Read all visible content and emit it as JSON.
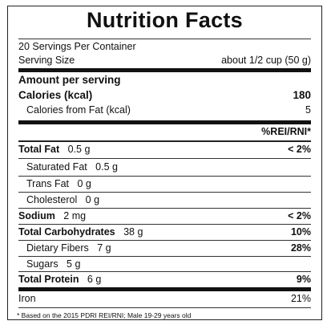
{
  "label": {
    "title": "Nutrition  Facts",
    "servings": "20 Servings Per Container",
    "serving_size_label": "Serving Size",
    "serving_size_value": "about 1/2 cup (50 g)",
    "amount_per_serving": "Amount per serving",
    "calories_label": "Calories (kcal)",
    "calories_value": "180",
    "calories_fat_label": "Calories from Fat (kcal)",
    "calories_fat_value": "5",
    "dv_header": "%REI/RNI*",
    "rows": [
      {
        "label": "Total Fat",
        "amount": "0.5 g",
        "dv": "< 2%"
      },
      {
        "label": "Saturated Fat",
        "amount": "0.5 g",
        "dv": ""
      },
      {
        "label": "Trans Fat",
        "amount": "0 g",
        "dv": ""
      },
      {
        "label": "Cholesterol",
        "amount": "0 g",
        "dv": ""
      },
      {
        "label": "Sodium",
        "amount": "2 mg",
        "dv": "< 2%"
      },
      {
        "label": "Total Carbohydrates",
        "amount": "38 g",
        "dv": "10%"
      },
      {
        "label": "Dietary Fibers",
        "amount": "7 g",
        "dv": "28%"
      },
      {
        "label": "Sugars",
        "amount": "5 g",
        "dv": ""
      },
      {
        "label": "Total Protein",
        "amount": "6 g",
        "dv": "9%"
      }
    ],
    "iron_label": "Iron",
    "iron_value": "21%",
    "footnote": "* Based on the 2015 PDRI REI/RNI; Male 19-29 years old"
  }
}
